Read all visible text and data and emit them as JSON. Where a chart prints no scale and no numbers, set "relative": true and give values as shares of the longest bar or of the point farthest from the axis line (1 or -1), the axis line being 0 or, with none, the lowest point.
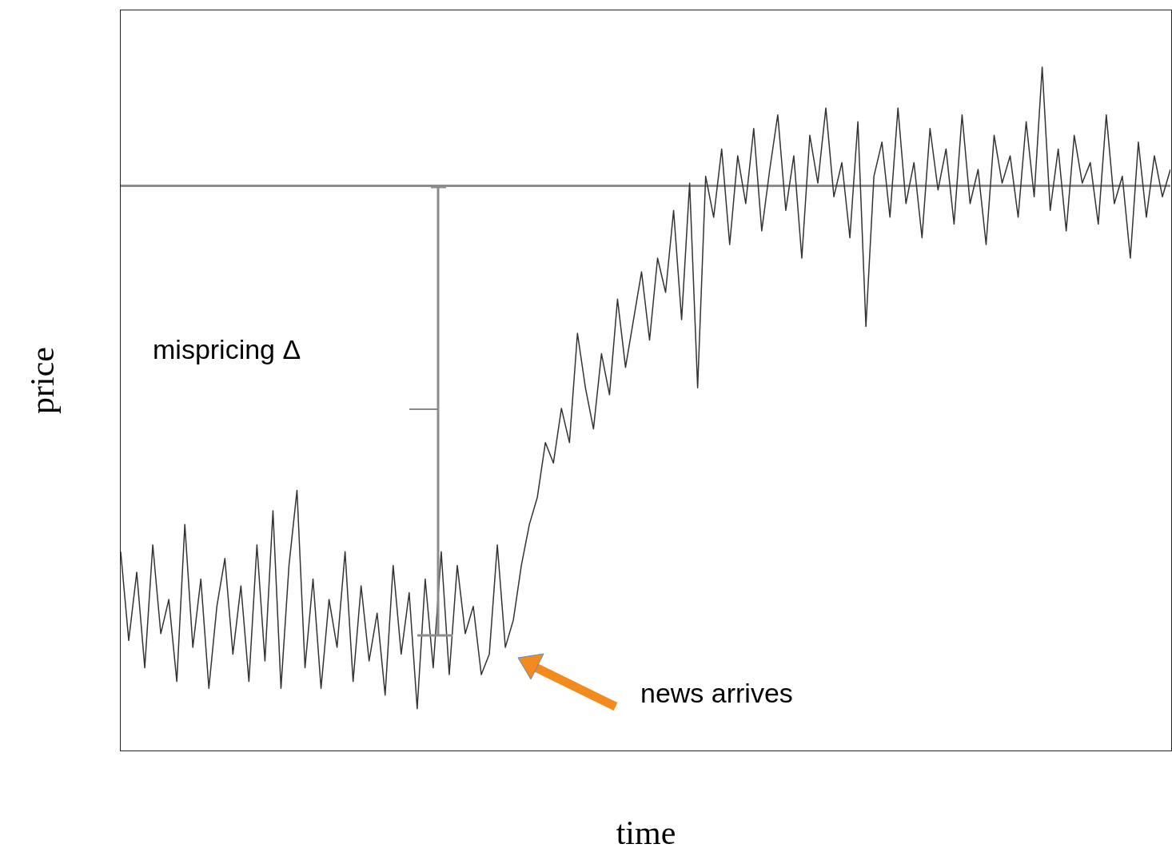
{
  "chart_data": {
    "type": "line",
    "relative": true,
    "xlabel": "time",
    "ylabel": "price",
    "legend": false,
    "grid": false,
    "marker": "none",
    "line_style": "solid",
    "annotations": [
      "mispricing Δ",
      "news arrives"
    ],
    "ref_lines": [
      {
        "axis": "y",
        "value": 0.826,
        "color": "#8c8c8c"
      }
    ],
    "categories": [
      null,
      null,
      null,
      null,
      null,
      null,
      null,
      null,
      null,
      null,
      null,
      null,
      null,
      null,
      null,
      null,
      null,
      null,
      null,
      null,
      null,
      null,
      null,
      null,
      null,
      null,
      null,
      null,
      null,
      null,
      null,
      null,
      null,
      null,
      null,
      null,
      null,
      null,
      null,
      null,
      null,
      null,
      null,
      null,
      null,
      null,
      null,
      null,
      null,
      null,
      null,
      null,
      null,
      null,
      null,
      null,
      null,
      null,
      null,
      null,
      null,
      null,
      null,
      null,
      null,
      null,
      null,
      null,
      null,
      null,
      null,
      null,
      null,
      null,
      null,
      null,
      null,
      null,
      null,
      null,
      null,
      null,
      null,
      null,
      null,
      null,
      null,
      null,
      null,
      null,
      null,
      null,
      null,
      null,
      null,
      null,
      null,
      null,
      null,
      null,
      null,
      null,
      null,
      null,
      null,
      null,
      null,
      null,
      null,
      null,
      null,
      null,
      null,
      null,
      null,
      null,
      null,
      null,
      null,
      null,
      null,
      null,
      null,
      null,
      null,
      null,
      null,
      null,
      null,
      null,
      null,
      null
    ],
    "series": [
      {
        "color": "#333333",
        "values": [
          0.29,
          0.16,
          0.26,
          0.12,
          0.3,
          0.17,
          0.22,
          0.1,
          0.33,
          0.15,
          0.25,
          0.09,
          0.21,
          0.28,
          0.14,
          0.24,
          0.1,
          0.3,
          0.13,
          0.35,
          0.09,
          0.27,
          0.38,
          0.12,
          0.25,
          0.09,
          0.22,
          0.15,
          0.29,
          0.1,
          0.24,
          0.13,
          0.2,
          0.08,
          0.27,
          0.14,
          0.23,
          0.06,
          0.25,
          0.12,
          0.29,
          0.11,
          0.27,
          0.17,
          0.21,
          0.11,
          0.14,
          0.3,
          0.15,
          0.19,
          0.27,
          0.33,
          0.37,
          0.45,
          0.42,
          0.5,
          0.45,
          0.61,
          0.53,
          0.47,
          0.58,
          0.52,
          0.66,
          0.56,
          0.63,
          0.7,
          0.6,
          0.72,
          0.67,
          0.79,
          0.63,
          0.83,
          0.53,
          0.84,
          0.78,
          0.88,
          0.74,
          0.87,
          0.8,
          0.91,
          0.76,
          0.85,
          0.93,
          0.79,
          0.87,
          0.72,
          0.9,
          0.83,
          0.94,
          0.81,
          0.86,
          0.75,
          0.92,
          0.62,
          0.84,
          0.89,
          0.78,
          0.94,
          0.8,
          0.86,
          0.75,
          0.91,
          0.82,
          0.88,
          0.77,
          0.93,
          0.8,
          0.85,
          0.74,
          0.9,
          0.83,
          0.87,
          0.78,
          0.92,
          0.81,
          1.0,
          0.79,
          0.88,
          0.76,
          0.9,
          0.83,
          0.86,
          0.77,
          0.93,
          0.8,
          0.84,
          0.72,
          0.89,
          0.78,
          0.87,
          0.81,
          0.85
        ]
      }
    ]
  }
}
